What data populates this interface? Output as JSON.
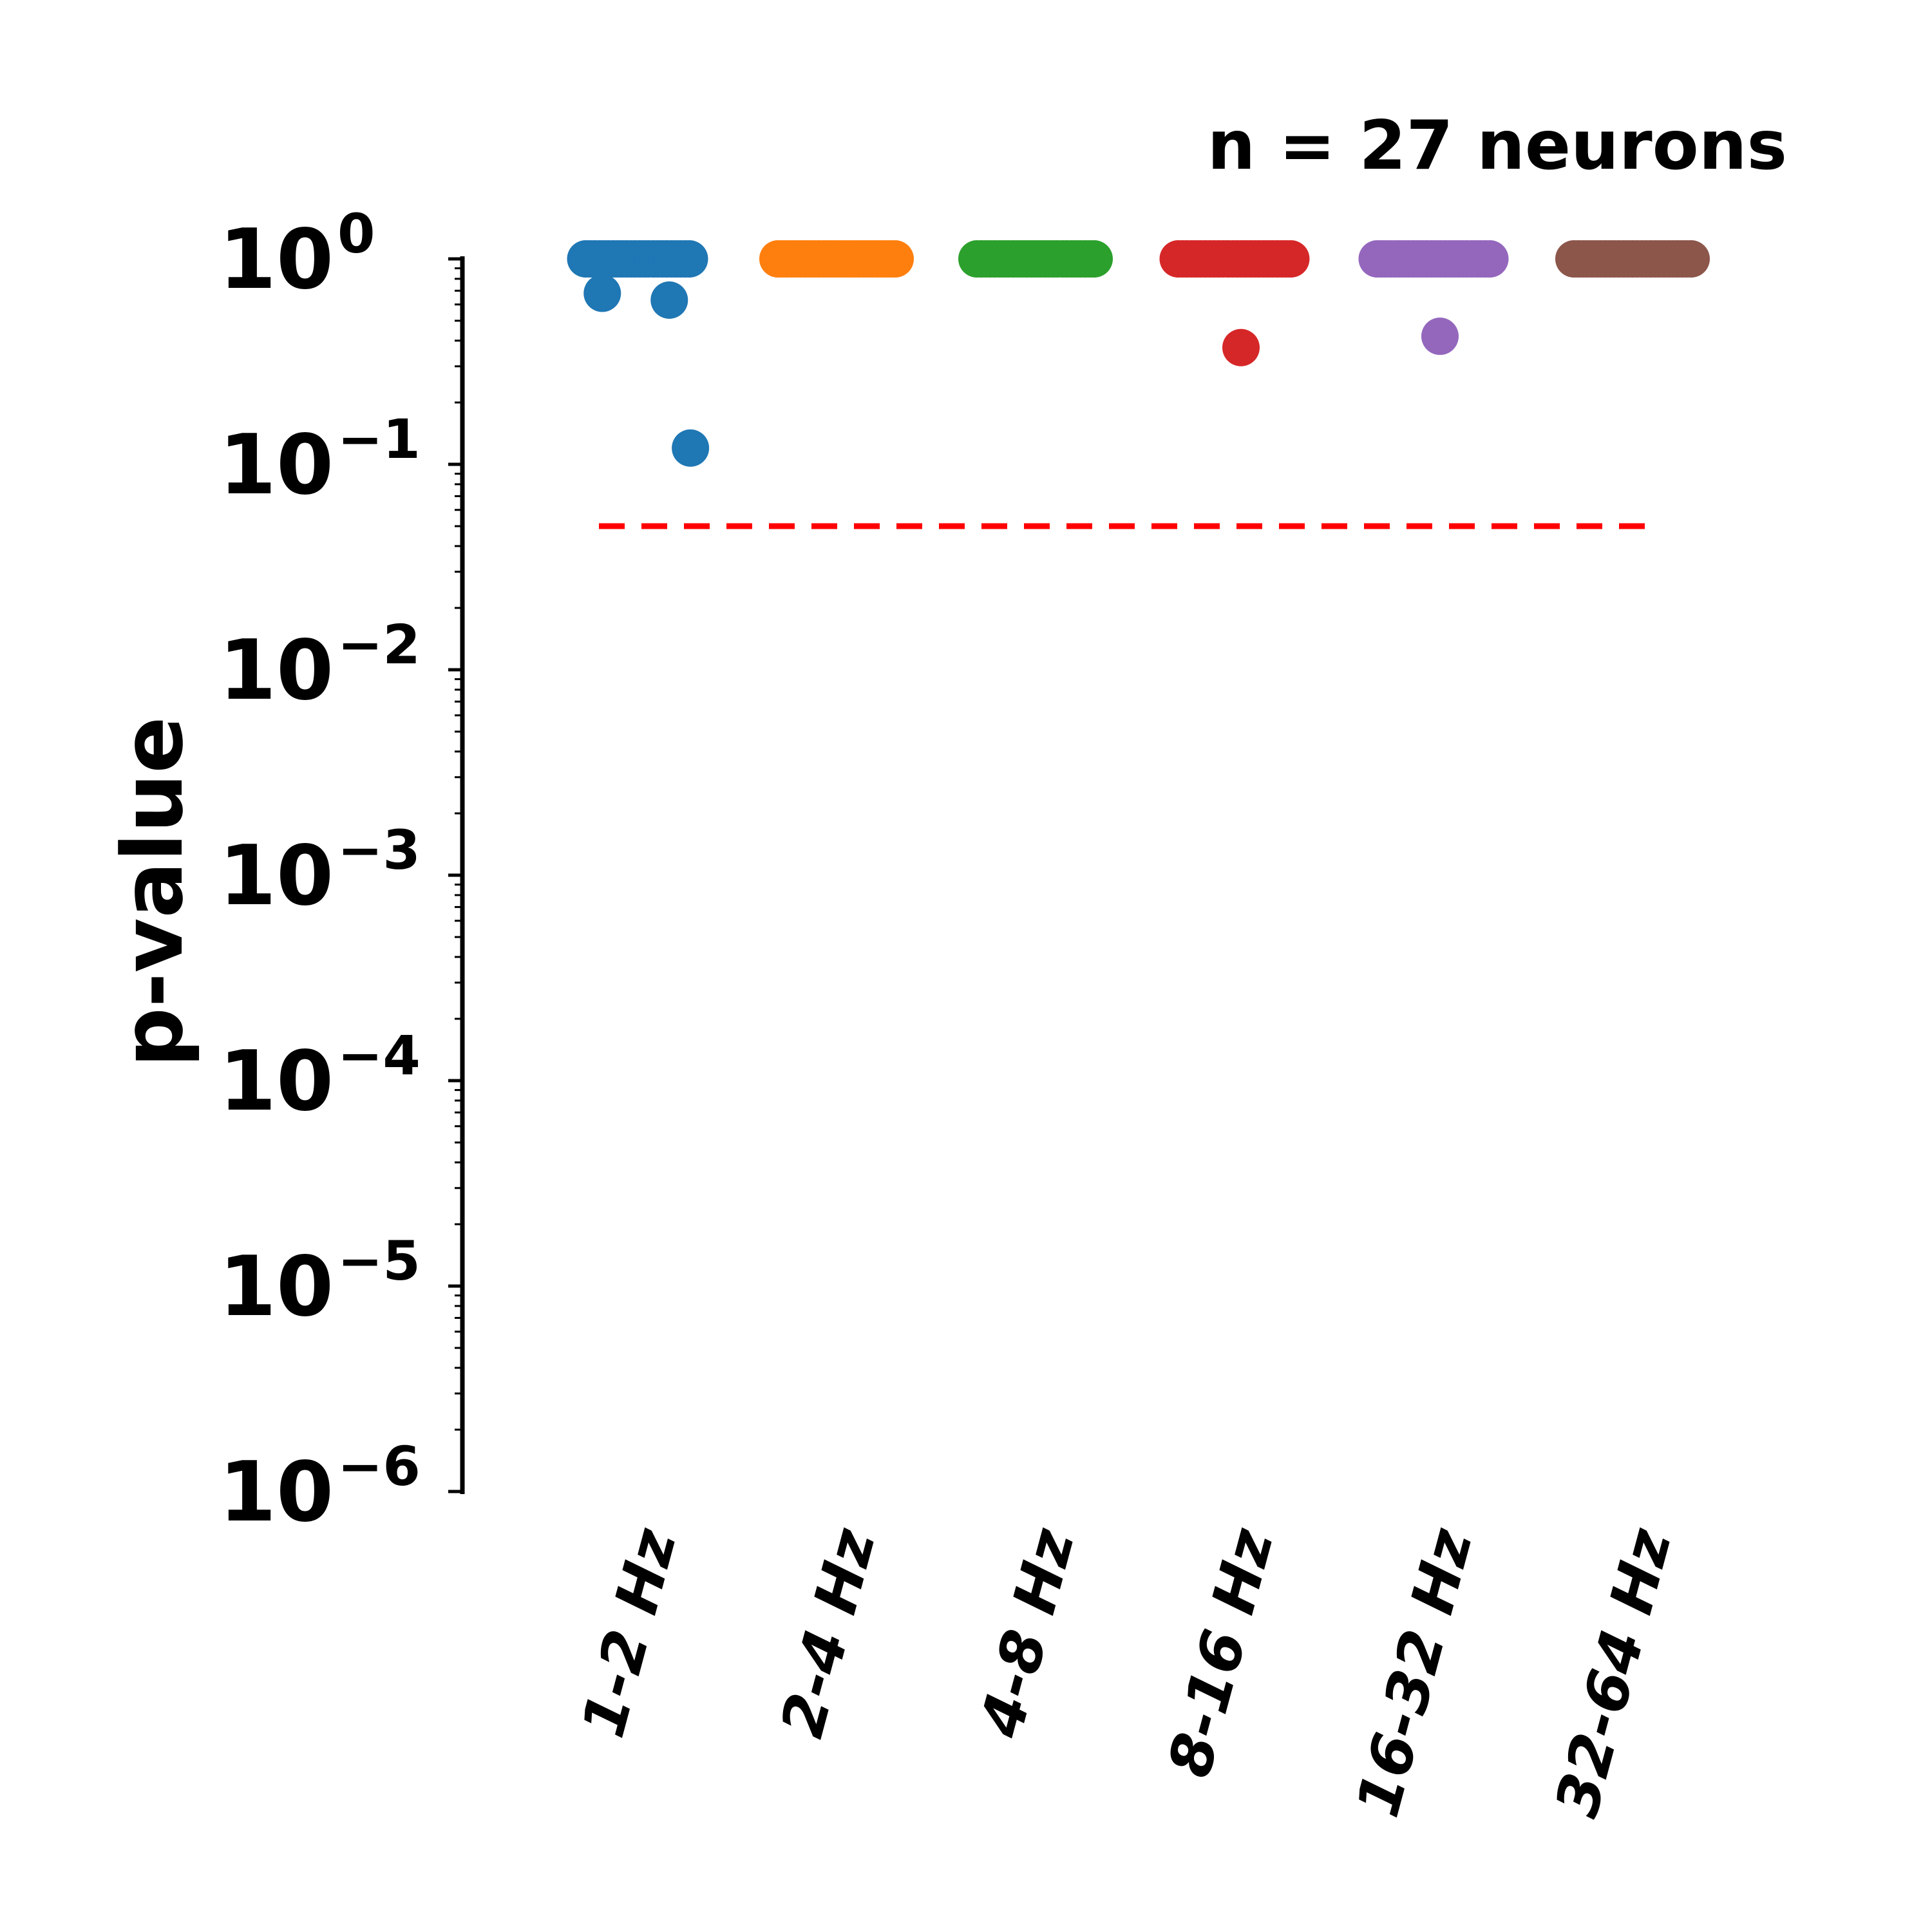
{
  "chart_data": {
    "type": "scatter",
    "ylabel": "p-value",
    "xlabel": "",
    "yscale": "log",
    "ylim": [
      1e-06,
      1
    ],
    "ytick_labels": [
      {
        "base": "10",
        "exp": "0"
      },
      {
        "base": "10",
        "exp": "−1"
      },
      {
        "base": "10",
        "exp": "−2"
      },
      {
        "base": "10",
        "exp": "−3"
      },
      {
        "base": "10",
        "exp": "−4"
      },
      {
        "base": "10",
        "exp": "−5"
      },
      {
        "base": "10",
        "exp": "−6"
      }
    ],
    "categories": [
      "1-2 Hz",
      "2-4 Hz",
      "4-8 Hz",
      "8-16 Hz",
      "16-32 Hz",
      "32-64 Hz"
    ],
    "colors": [
      "#1f77b4",
      "#ff7f0e",
      "#2ca02c",
      "#d62728",
      "#9467bd",
      "#8c564b"
    ],
    "annotation": "n = 27 neurons",
    "n_neurons": 27,
    "threshold": {
      "value": 0.05,
      "color": "#ff0000",
      "style": "dashed"
    },
    "grid": false,
    "series": [
      {
        "category": "1-2 Hz",
        "values": [
          1,
          1,
          1,
          1,
          1,
          1,
          1,
          1,
          1,
          1,
          1,
          1,
          1,
          1,
          1,
          1,
          1,
          1,
          1,
          1,
          1,
          1,
          1,
          1,
          0.68,
          0.63,
          0.12
        ]
      },
      {
        "category": "2-4 Hz",
        "values": [
          1,
          1,
          1,
          1,
          1,
          1,
          1,
          1,
          1,
          1,
          1,
          1,
          1,
          1,
          1,
          1,
          1,
          1,
          1,
          1,
          1,
          1,
          1,
          1,
          1,
          1,
          1
        ]
      },
      {
        "category": "4-8 Hz",
        "values": [
          1,
          1,
          1,
          1,
          1,
          1,
          1,
          1,
          1,
          1,
          1,
          1,
          1,
          1,
          1,
          1,
          1,
          1,
          1,
          1,
          1,
          1,
          1,
          1,
          1,
          1,
          1
        ]
      },
      {
        "category": "8-16 Hz",
        "values": [
          1,
          1,
          1,
          1,
          1,
          1,
          1,
          1,
          1,
          1,
          1,
          1,
          1,
          1,
          1,
          1,
          1,
          1,
          1,
          1,
          1,
          1,
          1,
          1,
          1,
          1,
          0.37
        ]
      },
      {
        "category": "16-32 Hz",
        "values": [
          1,
          1,
          1,
          1,
          1,
          1,
          1,
          1,
          1,
          1,
          1,
          1,
          1,
          1,
          1,
          1,
          1,
          1,
          1,
          1,
          1,
          1,
          1,
          1,
          1,
          1,
          0.42
        ]
      },
      {
        "category": "32-64 Hz",
        "values": [
          1,
          1,
          1,
          1,
          1,
          1,
          1,
          1,
          1,
          1,
          1,
          1,
          1,
          1,
          1,
          1,
          1,
          1,
          1,
          1,
          1,
          1,
          1,
          1,
          1,
          1,
          1
        ]
      }
    ]
  }
}
